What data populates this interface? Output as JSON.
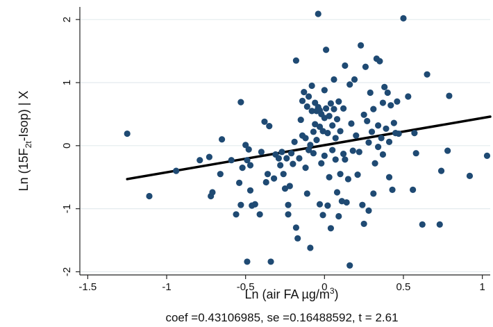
{
  "chart_data": {
    "type": "scatter",
    "title": "",
    "xlabel": "Ln (air FA µg/m³)",
    "xlabel_parts": {
      "main": "Ln (air FA µg/m",
      "sup": "3",
      "tail": ")"
    },
    "ylabel": "Ln (15F2t-Isop) | X",
    "ylabel_parts": {
      "pre": "Ln (15F",
      "sub": "2t",
      "post": "-Isop) | X"
    },
    "note": "coef =0.43106985, se =0.16488592, t = 2.61",
    "xlim": [
      -1.55,
      1.05
    ],
    "ylim": [
      -2.05,
      2.2
    ],
    "x_ticks": [
      -1.5,
      -1,
      -0.5,
      0,
      0.5,
      1
    ],
    "x_tick_labels": [
      "-1.5",
      "-1",
      "-0.5",
      "0",
      "0.5",
      "1"
    ],
    "y_ticks": [
      -2,
      -1,
      0,
      1,
      2
    ],
    "y_tick_labels": [
      "-2",
      "-1",
      "0",
      "1",
      "2"
    ],
    "grid": "horizontal",
    "marker_color": "#1f4a73",
    "line_color": "#000000",
    "fit_line": {
      "x": [
        -1.25,
        1.05
      ],
      "y": [
        -0.53,
        0.46
      ]
    },
    "points": [
      [
        -1.25,
        0.19
      ],
      [
        -1.11,
        -0.8
      ],
      [
        -0.94,
        -0.4
      ],
      [
        -0.79,
        -0.23
      ],
      [
        -0.73,
        -0.18
      ],
      [
        -0.72,
        -0.8
      ],
      [
        -0.71,
        -0.74
      ],
      [
        -0.66,
        -0.45
      ],
      [
        -0.65,
        0.1
      ],
      [
        -0.59,
        -0.23
      ],
      [
        -0.56,
        -1.09
      ],
      [
        -0.54,
        -0.59
      ],
      [
        -0.53,
        0.69
      ],
      [
        -0.53,
        -0.94
      ],
      [
        -0.52,
        -0.35
      ],
      [
        -0.5,
        0.01
      ],
      [
        -0.49,
        -0.23
      ],
      [
        -0.49,
        -1.84
      ],
      [
        -0.48,
        -0.06
      ],
      [
        -0.47,
        -0.31
      ],
      [
        -0.47,
        -0.71
      ],
      [
        -0.46,
        -0.95
      ],
      [
        -0.44,
        -0.93
      ],
      [
        -0.41,
        -1.09
      ],
      [
        -0.4,
        -0.1
      ],
      [
        -0.38,
        0.38
      ],
      [
        -0.37,
        -0.58
      ],
      [
        -0.36,
        -0.45
      ],
      [
        -0.35,
        0.31
      ],
      [
        -0.34,
        -1.84
      ],
      [
        -0.32,
        -0.52
      ],
      [
        -0.31,
        -0.14
      ],
      [
        -0.29,
        -0.2
      ],
      [
        -0.28,
        -0.31
      ],
      [
        -0.27,
        -0.1
      ],
      [
        -0.26,
        -0.45
      ],
      [
        -0.25,
        -0.68
      ],
      [
        -0.24,
        -0.2
      ],
      [
        -0.23,
        -1.09
      ],
      [
        -0.23,
        -0.94
      ],
      [
        -0.22,
        -0.64
      ],
      [
        -0.21,
        -0.12
      ],
      [
        -0.2,
        -0.29
      ],
      [
        -0.19,
        0.06
      ],
      [
        -0.18,
        1.35
      ],
      [
        -0.18,
        -1.3
      ],
      [
        -0.17,
        -1.47
      ],
      [
        -0.16,
        -0.2
      ],
      [
        -0.15,
        0.41
      ],
      [
        -0.14,
        0.16
      ],
      [
        -0.14,
        0.71
      ],
      [
        -0.13,
        0.85
      ],
      [
        -0.12,
        0.12
      ],
      [
        -0.12,
        -0.35
      ],
      [
        -0.11,
        0.62
      ],
      [
        -0.11,
        -0.76
      ],
      [
        -0.1,
        0.78
      ],
      [
        -0.1,
        -0.07
      ],
      [
        -0.09,
        0.01
      ],
      [
        -0.09,
        -1.62
      ],
      [
        -0.08,
        0.95
      ],
      [
        -0.08,
        0.55
      ],
      [
        -0.07,
        0.22
      ],
      [
        -0.07,
        -0.12
      ],
      [
        -0.06,
        0.68
      ],
      [
        -0.06,
        0.34
      ],
      [
        -0.05,
        0.55
      ],
      [
        -0.05,
        0.09
      ],
      [
        -0.04,
        0.61
      ],
      [
        -0.04,
        2.09
      ],
      [
        -0.03,
        0.56
      ],
      [
        -0.03,
        0.3
      ],
      [
        -0.03,
        -0.93
      ],
      [
        -0.02,
        0.5
      ],
      [
        -0.02,
        -0.28
      ],
      [
        -0.01,
        0.23
      ],
      [
        -0.01,
        -1.1
      ],
      [
        0,
        0.88
      ],
      [
        0,
        0.44
      ],
      [
        0,
        -0.16
      ],
      [
        0.01,
        0.59
      ],
      [
        0.01,
        1.52
      ],
      [
        0.02,
        0.2
      ],
      [
        0.02,
        -0.95
      ],
      [
        0.03,
        0.47
      ],
      [
        0.03,
        -0.5
      ],
      [
        0.04,
        0.67
      ],
      [
        0.04,
        -1.31
      ],
      [
        0.05,
        0.32
      ],
      [
        0.05,
        -0.07
      ],
      [
        0.06,
        0.58
      ],
      [
        0.06,
        1.05
      ],
      [
        0.07,
        0.12
      ],
      [
        0.07,
        -0.22
      ],
      [
        0.08,
        -0.74
      ],
      [
        0.08,
        0.42
      ],
      [
        0.09,
        -1.12
      ],
      [
        0.09,
        0.7
      ],
      [
        0.1,
        0.23
      ],
      [
        0.1,
        -0.45
      ],
      [
        0.11,
        -0.88
      ],
      [
        0.12,
        0.59
      ],
      [
        0.12,
        -0.13
      ],
      [
        0.13,
        1.27
      ],
      [
        0.13,
        -0.22
      ],
      [
        0.14,
        -0.9
      ],
      [
        0.15,
        -0.53
      ],
      [
        0.16,
        0.97
      ],
      [
        0.16,
        -1.9
      ],
      [
        0.17,
        0.35
      ],
      [
        0.18,
        -0.08
      ],
      [
        0.19,
        1.05
      ],
      [
        0.2,
        0.16
      ],
      [
        0.21,
        -0.46
      ],
      [
        0.22,
        -0.1
      ],
      [
        0.23,
        1.59
      ],
      [
        0.24,
        -0.94
      ],
      [
        0.25,
        0.49
      ],
      [
        0.25,
        -1.24
      ],
      [
        0.26,
        1.25
      ],
      [
        0.27,
        0.39
      ],
      [
        0.28,
        -1.03
      ],
      [
        0.28,
        0.05
      ],
      [
        0.29,
        0.84
      ],
      [
        0.3,
        0.22
      ],
      [
        0.31,
        -0.76
      ],
      [
        0.31,
        0.58
      ],
      [
        0.32,
        -0.28
      ],
      [
        0.33,
        1.38
      ],
      [
        0.34,
        0.32
      ],
      [
        0.34,
        -0.02
      ],
      [
        0.35,
        1.34
      ],
      [
        0.36,
        0.12
      ],
      [
        0.37,
        0.68
      ],
      [
        0.37,
        -0.14
      ],
      [
        0.38,
        0.93
      ],
      [
        0.39,
        0.27
      ],
      [
        0.4,
        0.84
      ],
      [
        0.41,
        -0.5
      ],
      [
        0.41,
        0.06
      ],
      [
        0.42,
        0.64
      ],
      [
        0.43,
        -0.7
      ],
      [
        0.44,
        0.36
      ],
      [
        0.45,
        0.2
      ],
      [
        0.46,
        0.7
      ],
      [
        0.47,
        0.19
      ],
      [
        0.5,
        2.02
      ],
      [
        0.53,
        0.78
      ],
      [
        0.56,
        -0.7
      ],
      [
        0.57,
        0.2
      ],
      [
        0.58,
        -0.12
      ],
      [
        0.62,
        -1.25
      ],
      [
        0.65,
        1.13
      ],
      [
        0.73,
        -1.25
      ],
      [
        0.74,
        -0.4
      ],
      [
        0.78,
        -0.08
      ],
      [
        0.79,
        0.79
      ],
      [
        0.92,
        -0.48
      ],
      [
        1.03,
        -0.16
      ]
    ]
  }
}
